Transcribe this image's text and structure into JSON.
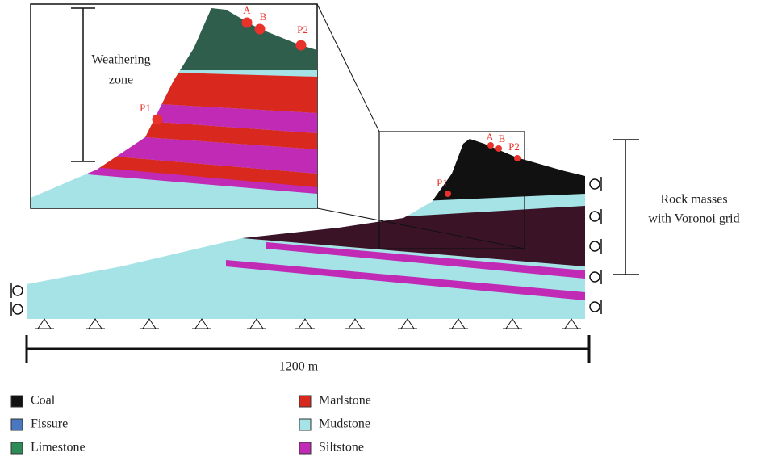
{
  "inset": {
    "points": [
      "A",
      "B",
      "P2",
      "P1"
    ],
    "annotation": [
      "Weathering",
      "zone"
    ]
  },
  "model": {
    "points": [
      "A",
      "B",
      "P2",
      "P1"
    ],
    "annotation": [
      "Rock masses",
      "with Voronoi grid"
    ],
    "dimension": "1200 m"
  },
  "legend": [
    {
      "name": "Coal",
      "color": "#111111"
    },
    {
      "name": "Fissure",
      "color": "#4a78c0"
    },
    {
      "name": "Limestone",
      "color": "#2e8b57"
    },
    {
      "name": "Marlstone",
      "color": "#d9281e"
    },
    {
      "name": "Mudstone",
      "color": "#a6e3e6"
    },
    {
      "name": "Siltstone",
      "color": "#c02ab5"
    }
  ]
}
